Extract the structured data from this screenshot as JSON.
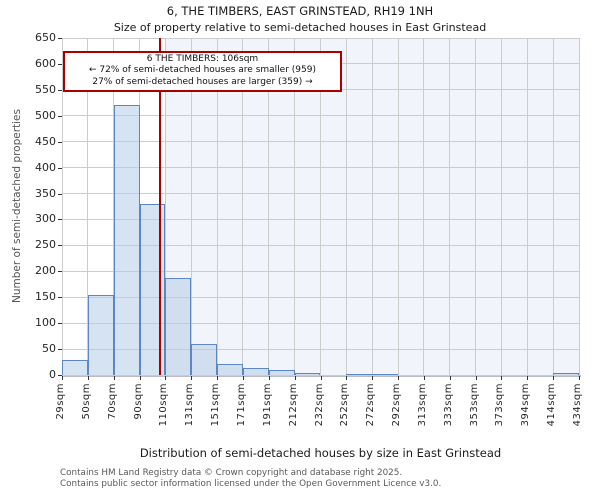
{
  "header": {
    "title": "6, THE TIMBERS, EAST GRINSTEAD, RH19 1NH",
    "subtitle": "Size of property relative to semi-detached houses in East Grinstead"
  },
  "annotation": {
    "line1": "6 THE TIMBERS: 106sqm",
    "line2": "← 72% of semi-detached houses are smaller (959)",
    "line3": "27% of semi-detached houses are larger (359) →"
  },
  "footer": {
    "line1": "Contains HM Land Registry data © Crown copyright and database right 2025.",
    "line2": "Contains public sector information licensed under the Open Government Licence v3.0."
  },
  "chart_data": {
    "type": "bar",
    "title": "6, THE TIMBERS, EAST GRINSTEAD, RH19 1NH",
    "subtitle": "Size of property relative to semi-detached houses in East Grinstead",
    "xlabel": "Distribution of semi-detached houses by size in East Grinstead",
    "ylabel": "Number of semi-detached properties",
    "bin_edges_sqm": [
      29,
      50,
      70,
      90,
      110,
      131,
      151,
      171,
      191,
      212,
      232,
      252,
      272,
      292,
      313,
      333,
      353,
      373,
      394,
      414,
      434
    ],
    "x_tick_labels": [
      "29sqm",
      "50sqm",
      "70sqm",
      "90sqm",
      "110sqm",
      "131sqm",
      "151sqm",
      "171sqm",
      "191sqm",
      "212sqm",
      "232sqm",
      "252sqm",
      "272sqm",
      "292sqm",
      "313sqm",
      "333sqm",
      "353sqm",
      "373sqm",
      "394sqm",
      "414sqm",
      "434sqm"
    ],
    "values": [
      28,
      155,
      520,
      330,
      187,
      60,
      21,
      14,
      10,
      3,
      0,
      2,
      2,
      0,
      0,
      0,
      0,
      0,
      0,
      3
    ],
    "ylim": [
      0,
      650
    ],
    "y_ticks": [
      0,
      50,
      100,
      150,
      200,
      250,
      300,
      350,
      400,
      450,
      500,
      550,
      600,
      650
    ],
    "grid": true,
    "legend": "none",
    "marker_value_sqm": 106,
    "marker_label": "6 THE TIMBERS: 106sqm",
    "pct_smaller": 72,
    "count_smaller": 959,
    "pct_larger": 27,
    "count_larger": 359,
    "colors": {
      "bar_fill": "#dce6f3",
      "bar_edge": "#5b87c3",
      "marker_red": "#aa0000",
      "shade_larger_region": "#f1f4fb",
      "gridline": "#cccccc",
      "footer_text": "#595959"
    }
  }
}
